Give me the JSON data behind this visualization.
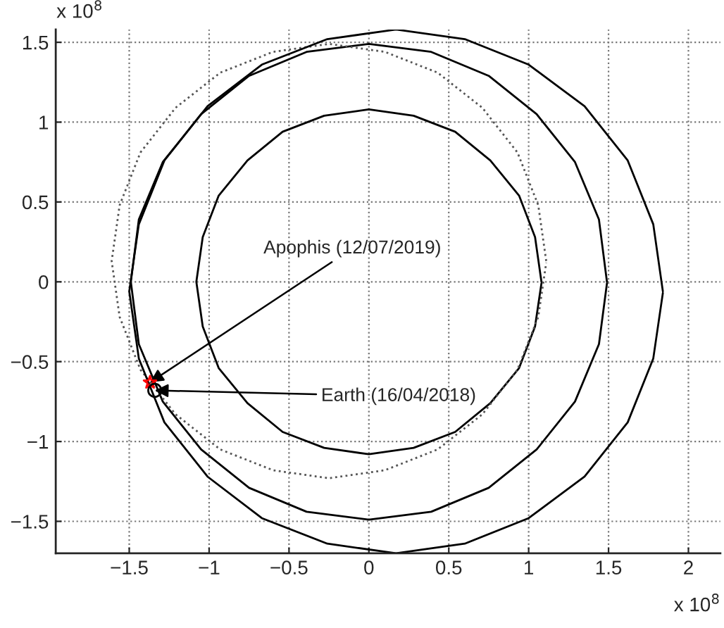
{
  "chart_data": {
    "type": "line",
    "series": [
      {
        "color": "#000000",
        "line_style": "solid",
        "x": [
          1.08,
          1.04,
          0.94,
          0.76,
          0.54,
          0.28,
          0,
          -0.28,
          -0.54,
          -0.76,
          -0.94,
          -1.04,
          -1.08,
          -1.04,
          -0.94,
          -0.76,
          -0.54,
          -0.28,
          0,
          0.28,
          0.54,
          0.76,
          0.94,
          1.04,
          1.08
        ],
        "values": [
          0,
          0.28,
          0.54,
          0.76,
          0.94,
          1.04,
          1.08,
          1.04,
          0.94,
          0.76,
          0.54,
          0.28,
          0,
          -0.28,
          -0.54,
          -0.76,
          -0.94,
          -1.04,
          -1.08,
          -1.04,
          -0.94,
          -0.76,
          -0.54,
          -0.28,
          -0.01
        ]
      },
      {
        "color": "#000000",
        "line_style": "solid",
        "x": [
          1.49,
          1.44,
          1.29,
          1.05,
          0.75,
          0.39,
          0,
          -0.39,
          -0.75,
          -1.05,
          -1.29,
          -1.44,
          -1.49,
          -1.44,
          -1.29,
          -1.05,
          -0.75,
          -0.39,
          0,
          0.39,
          0.75,
          1.05,
          1.29,
          1.44,
          1.49
        ],
        "values": [
          0,
          0.39,
          0.75,
          1.05,
          1.29,
          1.44,
          1.49,
          1.44,
          1.29,
          1.05,
          0.75,
          0.39,
          0,
          -0.39,
          -0.75,
          -1.05,
          -1.29,
          -1.44,
          -1.49,
          -1.44,
          -1.29,
          -1.05,
          -0.75,
          -0.39,
          -0.01
        ]
      },
      {
        "color": "#555555",
        "line_style": "dotted",
        "x": [
          1.11,
          1.06,
          0.93,
          0.71,
          0.43,
          0.1,
          -0.25,
          -0.6,
          -0.93,
          -1.21,
          -1.43,
          -1.56,
          -1.61,
          -1.56,
          -1.43,
          -1.21,
          -0.93,
          -0.6,
          -0.25,
          0.1,
          0.43,
          0.71,
          0.93,
          1.06,
          1.11
        ],
        "values": [
          0.13,
          0.48,
          0.81,
          1.09,
          1.31,
          1.44,
          1.49,
          1.44,
          1.31,
          1.09,
          0.81,
          0.48,
          0.13,
          -0.22,
          -0.55,
          -0.83,
          -1.05,
          -1.18,
          -1.23,
          -1.18,
          -1.05,
          -0.83,
          -0.55,
          -0.22,
          0.12
        ]
      },
      {
        "color": "#000000",
        "line_style": "solid",
        "x": [
          1.84,
          1.78,
          1.62,
          1.35,
          1.0,
          0.6,
          0.17,
          -0.26,
          -0.67,
          -1.01,
          -1.28,
          -1.44,
          -1.5,
          -1.44,
          -1.28,
          -1.01,
          -0.67,
          -0.26,
          0.17,
          0.6,
          1.0,
          1.35,
          1.62,
          1.78,
          1.84
        ],
        "values": [
          -0.06,
          0.36,
          0.76,
          1.1,
          1.36,
          1.52,
          1.58,
          1.52,
          1.36,
          1.1,
          0.76,
          0.36,
          -0.06,
          -0.48,
          -0.88,
          -1.22,
          -1.48,
          -1.64,
          -1.7,
          -1.64,
          -1.48,
          -1.22,
          -0.88,
          -0.48,
          -0.07
        ]
      },
      {
        "type": "scatter",
        "color": "#ff0000",
        "marker": "star",
        "x": [
          -1.37
        ],
        "values": [
          -0.63
        ]
      },
      {
        "type": "scatter",
        "color": "#000000",
        "marker": "circle",
        "x": [
          -1.34
        ],
        "values": [
          -0.68
        ]
      }
    ],
    "xlim": [
      -1.96,
      2.2
    ],
    "ylim": [
      -1.7,
      1.58
    ],
    "xticks": [
      {
        "value": -1.5,
        "label": "−1.5"
      },
      {
        "value": -1,
        "label": "−1"
      },
      {
        "value": -0.5,
        "label": "−0.5"
      },
      0,
      0.5,
      1,
      1.5,
      2
    ],
    "yticks": [
      {
        "value": -1.5,
        "label": "−1.5"
      },
      {
        "value": -1,
        "label": "−1"
      },
      {
        "value": -0.5,
        "label": "−0.5"
      },
      0,
      0.5,
      1,
      1.5
    ],
    "grid": true,
    "annotations": [
      {
        "text": "Apophis (12/07/2019)",
        "x": -1.37,
        "y": -0.63
      },
      {
        "text": "Earth (16/04/2018)",
        "x": -1.34,
        "y": -0.68
      },
      "x 10$^{8}$",
      "x 10$^{8}$"
    ]
  }
}
